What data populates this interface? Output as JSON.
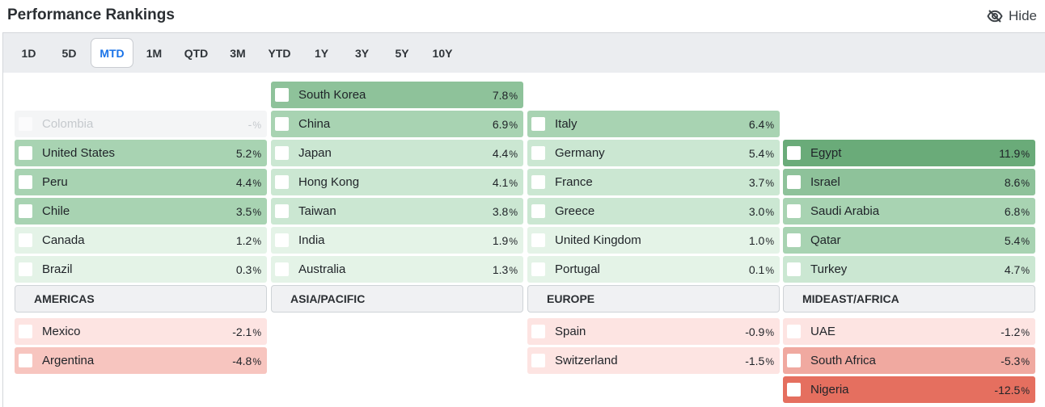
{
  "header": {
    "title": "Performance Rankings",
    "hide_label": "Hide"
  },
  "tabs": [
    {
      "label": "1D",
      "active": false
    },
    {
      "label": "5D",
      "active": false
    },
    {
      "label": "MTD",
      "active": true
    },
    {
      "label": "1M",
      "active": false
    },
    {
      "label": "QTD",
      "active": false
    },
    {
      "label": "3M",
      "active": false
    },
    {
      "label": "YTD",
      "active": false
    },
    {
      "label": "1Y",
      "active": false
    },
    {
      "label": "3Y",
      "active": false
    },
    {
      "label": "5Y",
      "active": false
    },
    {
      "label": "10Y",
      "active": false
    }
  ],
  "colors": {
    "nodata_bg": "#f4f5f6",
    "pos1": "#e4f3e7",
    "pos2": "#cbe7d2",
    "pos3": "#a8d3b2",
    "pos4": "#8ec29a",
    "pos5": "#6aab79",
    "neg1": "#fde4e2",
    "neg2": "#f7c5bf",
    "neg3": "#f0a9a0",
    "neg4": "#e56f5f",
    "accent": "#1a73e8"
  },
  "regions": [
    {
      "name": "AMERICAS",
      "gainers": [
        {
          "country": "Colombia",
          "value": "-",
          "pct": "%",
          "level": "nodata"
        },
        {
          "country": "United States",
          "value": "5.2",
          "pct": "%",
          "level": "pos3"
        },
        {
          "country": "Peru",
          "value": "4.4",
          "pct": "%",
          "level": "pos3"
        },
        {
          "country": "Chile",
          "value": "3.5",
          "pct": "%",
          "level": "pos3"
        },
        {
          "country": "Canada",
          "value": "1.2",
          "pct": "%",
          "level": "pos1"
        },
        {
          "country": "Brazil",
          "value": "0.3",
          "pct": "%",
          "level": "pos1"
        }
      ],
      "losers": [
        {
          "country": "Mexico",
          "value": "-2.1",
          "pct": "%",
          "level": "neg1"
        },
        {
          "country": "Argentina",
          "value": "-4.8",
          "pct": "%",
          "level": "neg2"
        }
      ]
    },
    {
      "name": "ASIA/PACIFIC",
      "gainers": [
        {
          "country": "South Korea",
          "value": "7.8",
          "pct": "%",
          "level": "pos4"
        },
        {
          "country": "China",
          "value": "6.9",
          "pct": "%",
          "level": "pos3"
        },
        {
          "country": "Japan",
          "value": "4.4",
          "pct": "%",
          "level": "pos2"
        },
        {
          "country": "Hong Kong",
          "value": "4.1",
          "pct": "%",
          "level": "pos2"
        },
        {
          "country": "Taiwan",
          "value": "3.8",
          "pct": "%",
          "level": "pos2"
        },
        {
          "country": "India",
          "value": "1.9",
          "pct": "%",
          "level": "pos1"
        },
        {
          "country": "Australia",
          "value": "1.3",
          "pct": "%",
          "level": "pos1"
        }
      ],
      "losers": []
    },
    {
      "name": "EUROPE",
      "gainers": [
        {
          "country": "Italy",
          "value": "6.4",
          "pct": "%",
          "level": "pos3"
        },
        {
          "country": "Germany",
          "value": "5.4",
          "pct": "%",
          "level": "pos2"
        },
        {
          "country": "France",
          "value": "3.7",
          "pct": "%",
          "level": "pos2"
        },
        {
          "country": "Greece",
          "value": "3.0",
          "pct": "%",
          "level": "pos2"
        },
        {
          "country": "United Kingdom",
          "value": "1.0",
          "pct": "%",
          "level": "pos1"
        },
        {
          "country": "Portugal",
          "value": "0.1",
          "pct": "%",
          "level": "pos1"
        }
      ],
      "losers": [
        {
          "country": "Spain",
          "value": "-0.9",
          "pct": "%",
          "level": "neg1"
        },
        {
          "country": "Switzerland",
          "value": "-1.5",
          "pct": "%",
          "level": "neg1"
        }
      ]
    },
    {
      "name": "MIDEAST/AFRICA",
      "gainers": [
        {
          "country": "Egypt",
          "value": "11.9",
          "pct": "%",
          "level": "pos5"
        },
        {
          "country": "Israel",
          "value": "8.6",
          "pct": "%",
          "level": "pos4"
        },
        {
          "country": "Saudi Arabia",
          "value": "6.8",
          "pct": "%",
          "level": "pos3"
        },
        {
          "country": "Qatar",
          "value": "5.4",
          "pct": "%",
          "level": "pos3"
        },
        {
          "country": "Turkey",
          "value": "4.7",
          "pct": "%",
          "level": "pos2"
        }
      ],
      "losers": [
        {
          "country": "UAE",
          "value": "-1.2",
          "pct": "%",
          "level": "neg1"
        },
        {
          "country": "South Africa",
          "value": "-5.3",
          "pct": "%",
          "level": "neg3"
        },
        {
          "country": "Nigeria",
          "value": "-12.5",
          "pct": "%",
          "level": "neg4"
        }
      ]
    }
  ]
}
